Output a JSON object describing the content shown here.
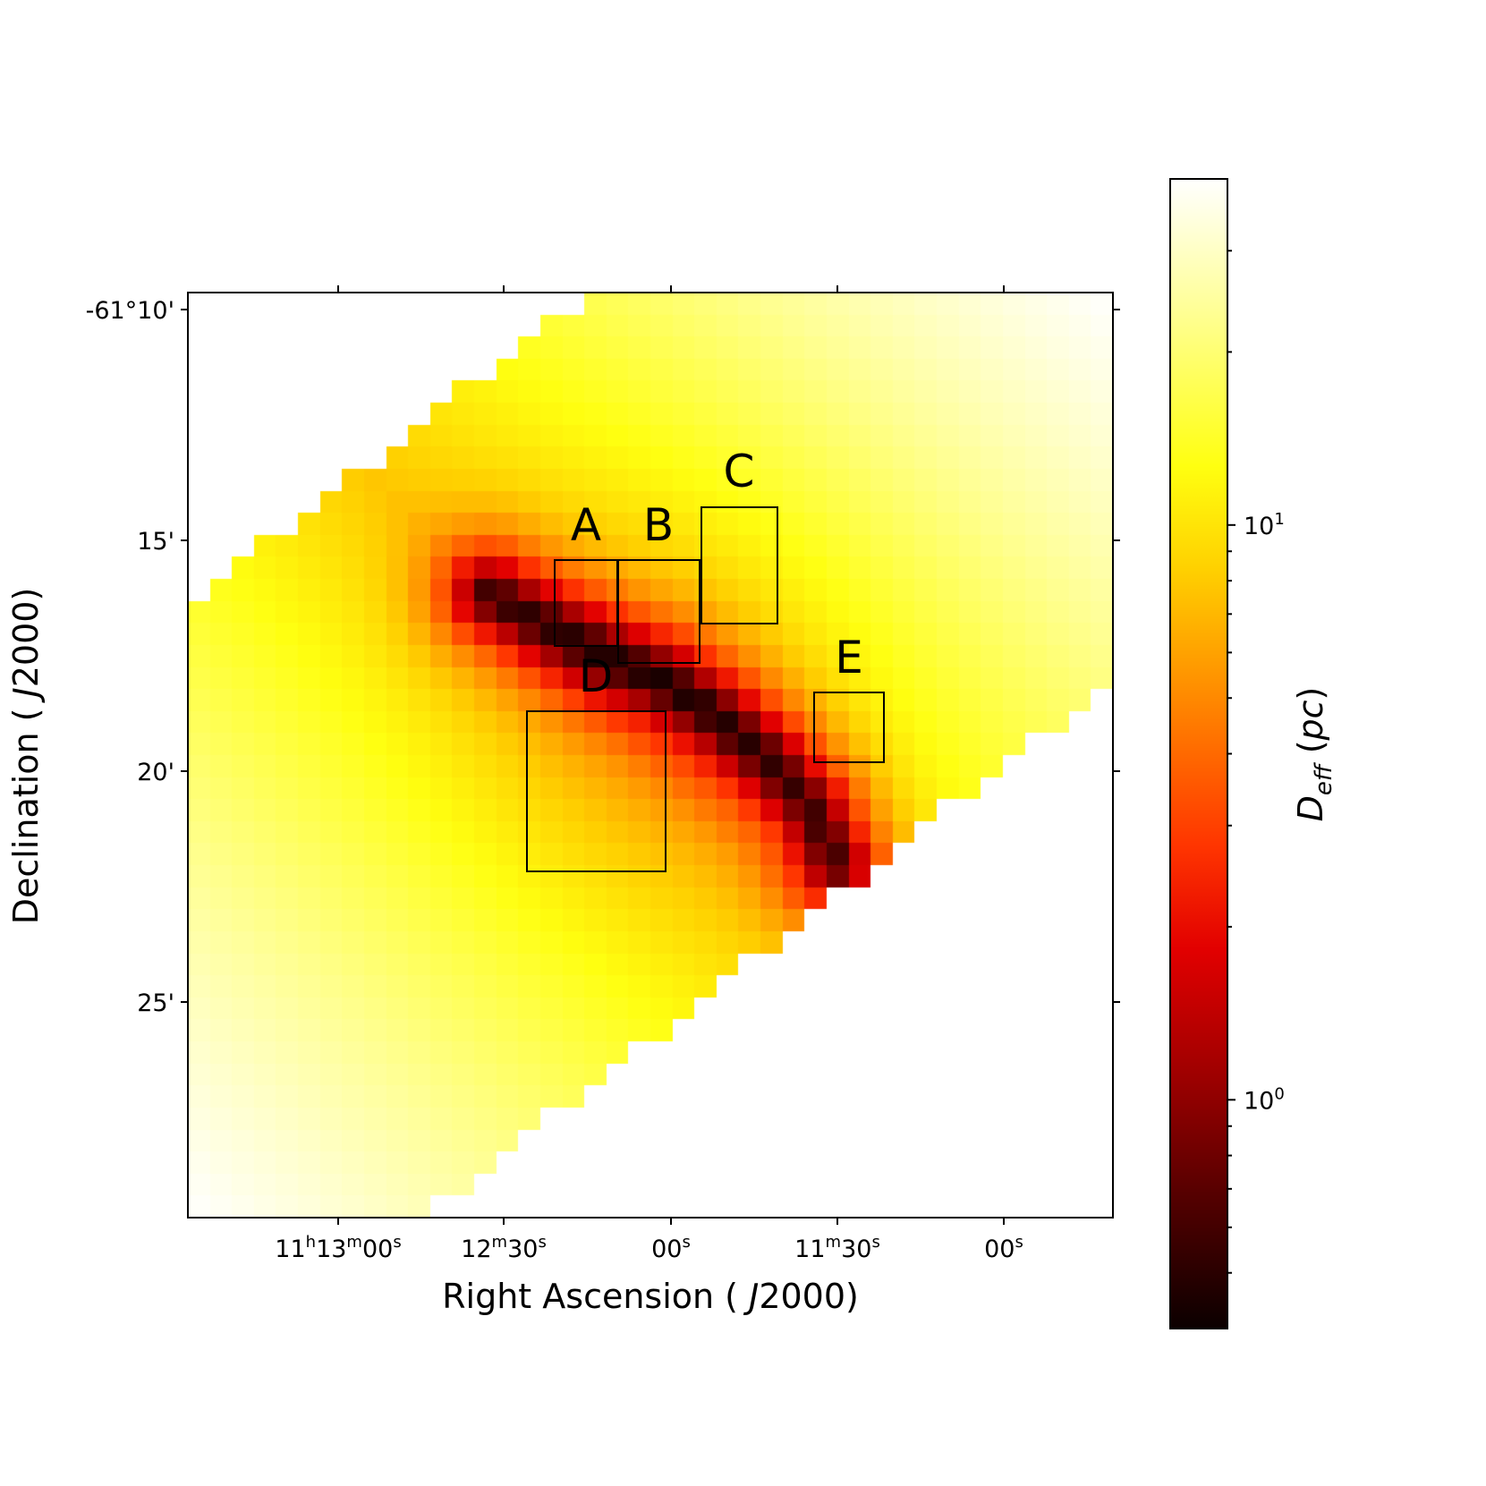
{
  "chart_data": {
    "type": "heatmap",
    "title": "",
    "xlabel": "Right Ascension ( J2000)",
    "xlabel_parts": {
      "before": "Right Ascension ( ",
      "italic": "J",
      "after": "2000)"
    },
    "ylabel": "Declination ( J2000)",
    "ylabel_parts": {
      "before": "Declination ( ",
      "italic": "J",
      "after": "2000)"
    },
    "x_ticks": [
      {
        "label": "11h13m00s",
        "parts": [
          [
            "11",
            "n"
          ],
          [
            "h",
            "s"
          ],
          [
            "13",
            "n"
          ],
          [
            "m",
            "s"
          ],
          [
            "00",
            "n"
          ],
          [
            "s",
            "s"
          ]
        ]
      },
      {
        "label": "12m30s",
        "parts": [
          [
            "12",
            "n"
          ],
          [
            "m",
            "s"
          ],
          [
            "30",
            "n"
          ],
          [
            "s",
            "s"
          ]
        ]
      },
      {
        "label": "00s",
        "parts": [
          [
            "00",
            "n"
          ],
          [
            "s",
            "s"
          ]
        ]
      },
      {
        "label": "11m30s",
        "parts": [
          [
            "11",
            "n"
          ],
          [
            "m",
            "s"
          ],
          [
            "30",
            "n"
          ],
          [
            "s",
            "s"
          ]
        ]
      },
      {
        "label": "00s",
        "parts": [
          [
            "00",
            "n"
          ],
          [
            "s",
            "s"
          ]
        ]
      }
    ],
    "y_ticks": [
      "-61°10'",
      "15'",
      "20'",
      "25'"
    ],
    "colorbar": {
      "label": "D_eff (pc)",
      "label_parts": {
        "main": "D",
        "sub": "eff",
        "unit": "pc"
      },
      "scale": "log",
      "range": [
        0.4,
        40
      ],
      "ticks": [
        {
          "value": 10,
          "label": "10^1",
          "base": "10",
          "exp": "1"
        },
        {
          "value": 1,
          "label": "10^0",
          "base": "10",
          "exp": "0"
        }
      ],
      "colormap": "hot"
    },
    "regions": [
      {
        "label": "A"
      },
      {
        "label": "B"
      },
      {
        "label": "C"
      },
      {
        "label": "D"
      },
      {
        "label": "E"
      }
    ],
    "grid": false
  }
}
